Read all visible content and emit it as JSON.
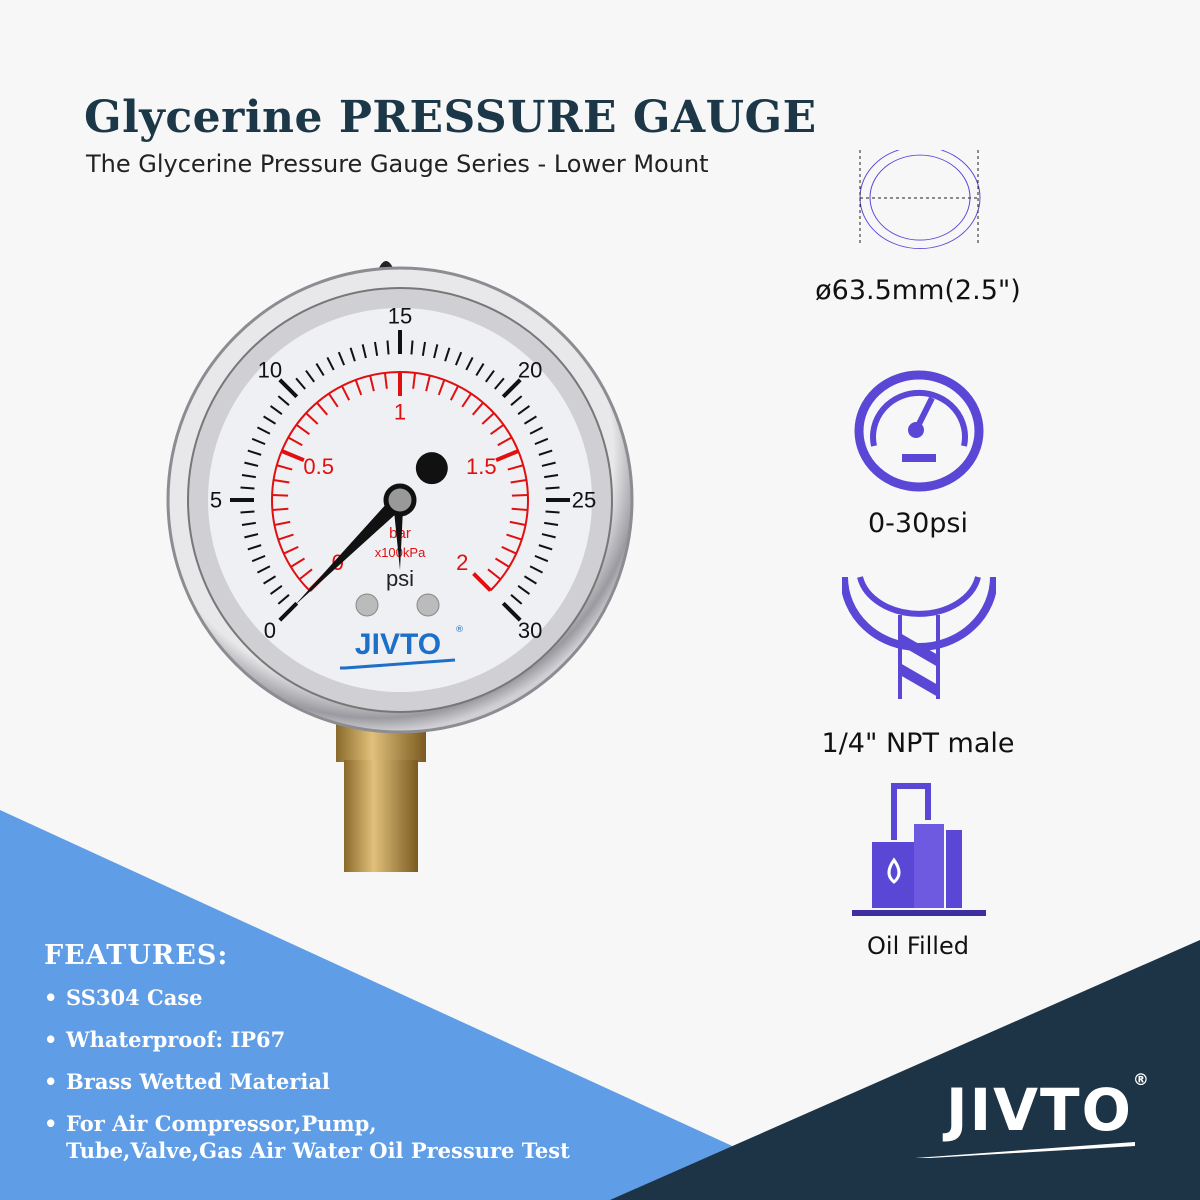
{
  "header": {
    "title": "Glycerine PRESSURE GAUGE",
    "subtitle": "The Glycerine Pressure Gauge Series - Lower Mount"
  },
  "gauge": {
    "brand": "JIVTO",
    "registered": "®",
    "psi_labels": [
      "0",
      "5",
      "10",
      "15",
      "20",
      "25",
      "30"
    ],
    "bar_labels": [
      "0",
      "0.5",
      "1",
      "1.5",
      "2"
    ],
    "unit_psi": "psi",
    "unit_bar": "bar",
    "unit_kpa": "x100kPa",
    "reading_psi": 0,
    "colors": {
      "psi_scale": "#111111",
      "bar_scale": "#e01010",
      "brand": "#1e6fc8"
    }
  },
  "specs": [
    {
      "icon": "diameter-circle-icon",
      "label": "ø63.5mm(2.5\")"
    },
    {
      "icon": "gauge-icon",
      "label": "0-30psi"
    },
    {
      "icon": "thread-connection-icon",
      "label": "1/4\" NPT male"
    },
    {
      "icon": "oil-tank-icon",
      "label": "Oil Filled"
    }
  ],
  "features": {
    "heading": "FEATURES:",
    "items": [
      "SS304  Case",
      "Whaterproof: IP67",
      "Brass Wetted Material",
      "For Air Compressor,Pump,",
      "Tube,Valve,Gas Air Water Oil Pressure Test"
    ]
  },
  "footer": {
    "brand": "JIVTO",
    "registered": "®"
  },
  "colors": {
    "accent": "#5a47d6",
    "blue_band": "#5f9de6",
    "dark_band": "#1d3447",
    "title": "#1c3848"
  }
}
